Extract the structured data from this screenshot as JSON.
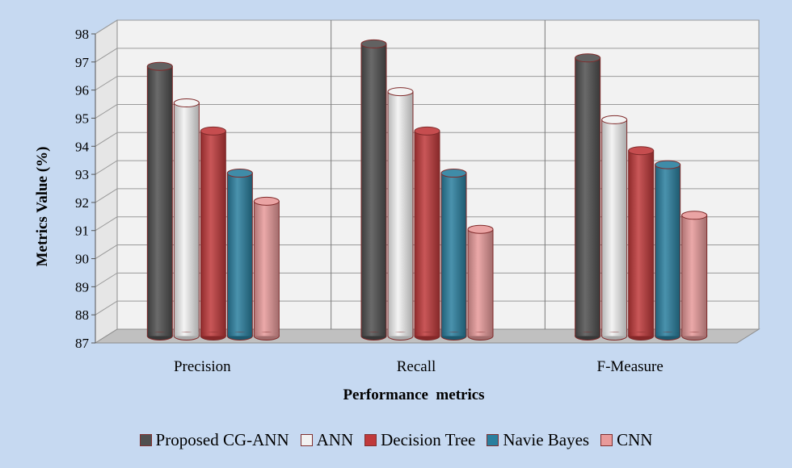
{
  "chart_data": {
    "type": "bar",
    "title": "",
    "xlabel": "Performance  metrics",
    "ylabel": "Metrics Value (%)",
    "ylim": [
      87,
      98
    ],
    "yticks": [
      87,
      88,
      89,
      90,
      91,
      92,
      93,
      94,
      95,
      96,
      97,
      98
    ],
    "grid": true,
    "legend_position": "bottom",
    "categories": [
      "Precision",
      "Recall",
      "F-Measure"
    ],
    "series": [
      {
        "name": "Proposed CG-ANN",
        "color": "#505050",
        "values": [
          96.6,
          97.4,
          96.9
        ]
      },
      {
        "name": "ANN",
        "color": "#f2f2f2",
        "values": [
          95.3,
          95.7,
          94.7
        ]
      },
      {
        "name": "Decision Tree",
        "color": "#c0393b",
        "values": [
          94.3,
          94.3,
          93.6
        ]
      },
      {
        "name": "Navie Bayes",
        "color": "#2a7f9e",
        "values": [
          92.8,
          92.8,
          93.1
        ]
      },
      {
        "name": "CNN",
        "color": "#e89a9a",
        "values": [
          91.8,
          90.8,
          91.3
        ]
      }
    ]
  }
}
